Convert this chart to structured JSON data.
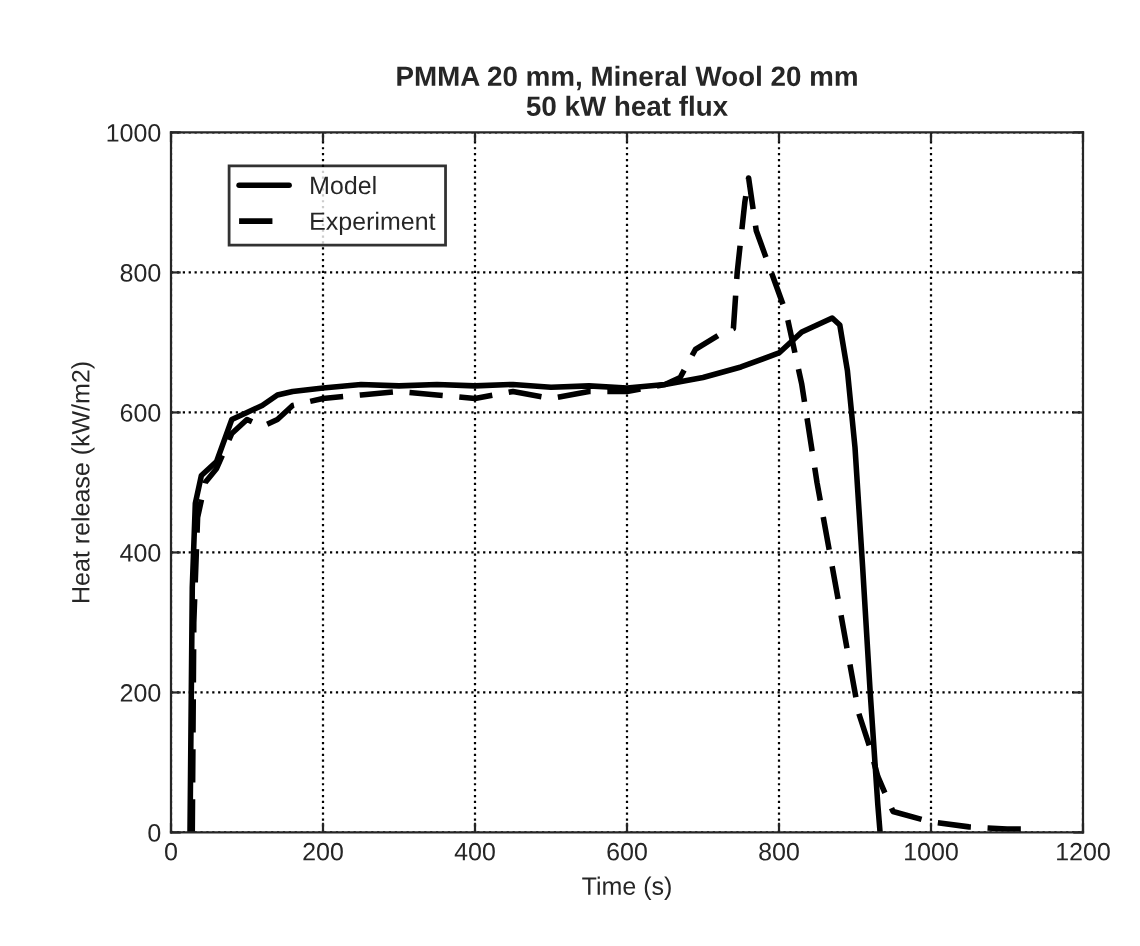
{
  "chart_data": {
    "type": "line",
    "title": "PMMA 20 mm, Mineral Wool 20 mm\n50 kW heat flux",
    "xlabel": "Time (s)",
    "ylabel": "Heat release (kW/m2)",
    "xlim": [
      0,
      1200
    ],
    "ylim": [
      0,
      1000
    ],
    "xticks": [
      0,
      200,
      400,
      600,
      800,
      1000,
      1200
    ],
    "yticks": [
      0,
      200,
      400,
      600,
      800,
      1000
    ],
    "grid": true,
    "legend": "top left",
    "series": [
      {
        "name": "Model",
        "color": "#000000",
        "line_style": "solid",
        "x": [
          25,
          28,
          32,
          40,
          60,
          80,
          100,
          120,
          140,
          160,
          200,
          250,
          300,
          350,
          400,
          450,
          500,
          550,
          600,
          650,
          700,
          750,
          800,
          830,
          850,
          870,
          880,
          890,
          900,
          910,
          920,
          930,
          933
        ],
        "values": [
          0,
          350,
          470,
          510,
          530,
          590,
          600,
          610,
          625,
          630,
          635,
          640,
          638,
          640,
          638,
          640,
          636,
          638,
          635,
          640,
          650,
          665,
          685,
          715,
          725,
          735,
          725,
          660,
          550,
          380,
          200,
          40,
          0
        ]
      },
      {
        "name": "Experiment",
        "color": "#000000",
        "line_style": "dashed",
        "x": [
          28,
          30,
          35,
          45,
          60,
          80,
          100,
          120,
          140,
          160,
          200,
          250,
          300,
          350,
          400,
          450,
          500,
          550,
          600,
          650,
          670,
          690,
          720,
          740,
          745,
          755,
          760,
          770,
          790,
          810,
          830,
          850,
          870,
          890,
          905,
          920,
          930,
          950,
          1000,
          1050,
          1100,
          1130
        ],
        "values": [
          0,
          300,
          450,
          500,
          520,
          570,
          590,
          580,
          590,
          610,
          620,
          625,
          630,
          625,
          620,
          630,
          620,
          630,
          630,
          640,
          650,
          690,
          710,
          720,
          800,
          900,
          935,
          860,
          800,
          740,
          640,
          500,
          380,
          260,
          170,
          120,
          80,
          30,
          15,
          8,
          5,
          5
        ]
      }
    ]
  }
}
